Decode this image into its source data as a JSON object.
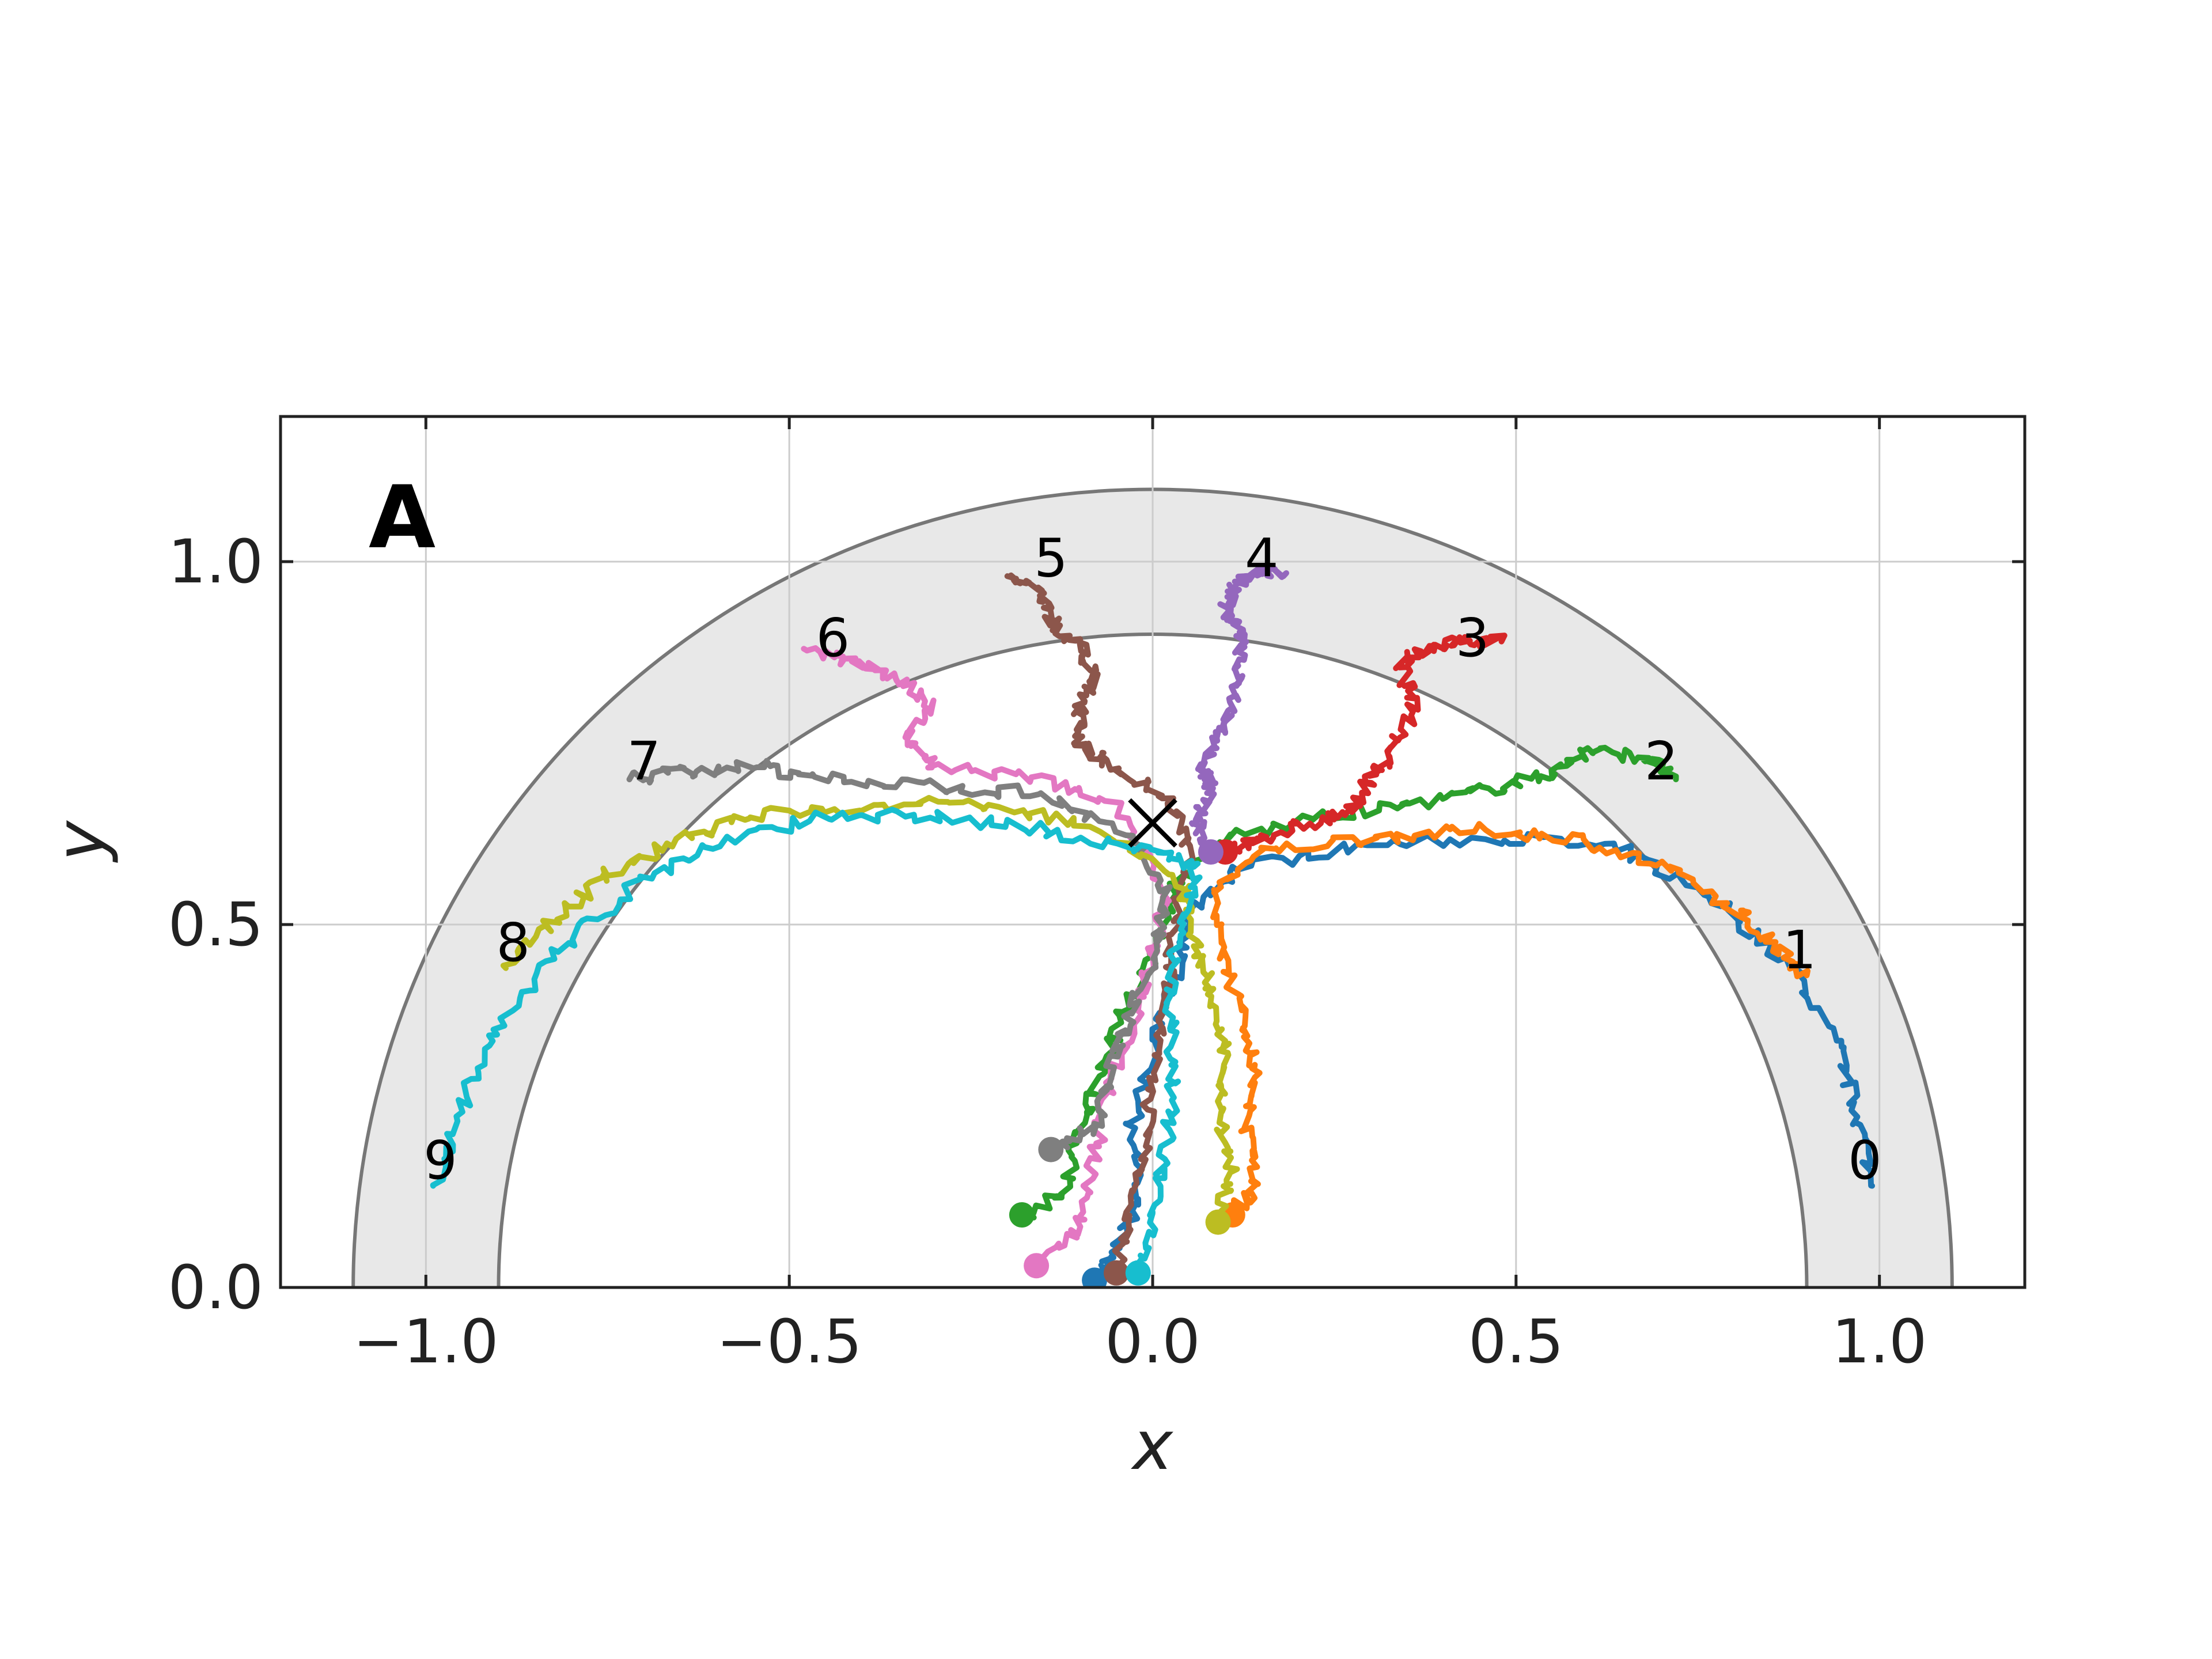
{
  "chart_data": {
    "type": "line",
    "panel_label": "A",
    "xlabel": "x",
    "ylabel": "y",
    "xlim": [
      -1.2,
      1.2
    ],
    "ylim": [
      0.0,
      1.2
    ],
    "xticks": [
      -1.0,
      -0.5,
      0.0,
      0.5,
      1.0
    ],
    "yticks": [
      0.0,
      0.5,
      1.0
    ],
    "xtick_labels": [
      "−1.0",
      "−0.5",
      "0.0",
      "0.5",
      "1.0"
    ],
    "ytick_labels": [
      "0.0",
      "0.5",
      "1.0"
    ],
    "grid": true,
    "annulus": {
      "inner_radius": 0.9,
      "outer_radius": 1.1,
      "fill": "#e8e8e8",
      "edge": "#777777"
    },
    "target_marker": {
      "x": 0.0,
      "y": 0.64,
      "symbol": "x",
      "color": "#000000"
    },
    "series": [
      {
        "label": "0",
        "color": "#1f77b4",
        "points": [
          [
            -0.08,
            0.01
          ],
          [
            -0.06,
            0.04
          ],
          [
            -0.02,
            0.12
          ],
          [
            -0.03,
            0.22
          ],
          [
            0.0,
            0.32
          ],
          [
            0.03,
            0.42
          ],
          [
            0.05,
            0.52
          ],
          [
            0.12,
            0.58
          ],
          [
            0.3,
            0.61
          ],
          [
            0.5,
            0.62
          ],
          [
            0.65,
            0.6
          ],
          [
            0.78,
            0.53
          ],
          [
            0.88,
            0.44
          ],
          [
            0.94,
            0.34
          ],
          [
            0.97,
            0.24
          ],
          [
            0.99,
            0.14
          ]
        ],
        "label_pos": [
          0.98,
          0.17
        ]
      },
      {
        "label": "1",
        "color": "#ff7f0e",
        "points": [
          [
            0.11,
            0.1
          ],
          [
            0.14,
            0.14
          ],
          [
            0.13,
            0.22
          ],
          [
            0.14,
            0.3
          ],
          [
            0.13,
            0.36
          ],
          [
            0.1,
            0.44
          ],
          [
            0.08,
            0.54
          ],
          [
            0.15,
            0.6
          ],
          [
            0.3,
            0.62
          ],
          [
            0.45,
            0.63
          ],
          [
            0.58,
            0.62
          ],
          [
            0.7,
            0.58
          ],
          [
            0.8,
            0.52
          ],
          [
            0.86,
            0.47
          ],
          [
            0.9,
            0.43
          ]
        ],
        "label_pos": [
          0.89,
          0.46
        ]
      },
      {
        "label": "2",
        "color": "#2ca02c",
        "points": [
          [
            -0.18,
            0.1
          ],
          [
            -0.12,
            0.13
          ],
          [
            -0.1,
            0.22
          ],
          [
            -0.07,
            0.3
          ],
          [
            -0.04,
            0.38
          ],
          [
            0.0,
            0.46
          ],
          [
            0.03,
            0.55
          ],
          [
            0.1,
            0.62
          ],
          [
            0.25,
            0.65
          ],
          [
            0.38,
            0.67
          ],
          [
            0.48,
            0.69
          ],
          [
            0.55,
            0.71
          ],
          [
            0.6,
            0.74
          ],
          [
            0.68,
            0.73
          ],
          [
            0.72,
            0.7
          ]
        ],
        "label_pos": [
          0.7,
          0.72
        ]
      },
      {
        "label": "3",
        "color": "#d62728",
        "points": [
          [
            0.1,
            0.6
          ],
          [
            0.15,
            0.62
          ],
          [
            0.22,
            0.64
          ],
          [
            0.28,
            0.66
          ],
          [
            0.3,
            0.7
          ],
          [
            0.33,
            0.74
          ],
          [
            0.36,
            0.8
          ],
          [
            0.34,
            0.86
          ],
          [
            0.38,
            0.88
          ],
          [
            0.42,
            0.89
          ],
          [
            0.48,
            0.89
          ]
        ],
        "label_pos": [
          0.44,
          0.89
        ]
      },
      {
        "label": "4",
        "color": "#9467bd",
        "points": [
          [
            0.08,
            0.6
          ],
          [
            0.06,
            0.64
          ],
          [
            0.08,
            0.68
          ],
          [
            0.07,
            0.72
          ],
          [
            0.09,
            0.76
          ],
          [
            0.11,
            0.8
          ],
          [
            0.12,
            0.85
          ],
          [
            0.12,
            0.9
          ],
          [
            0.1,
            0.94
          ],
          [
            0.12,
            0.97
          ],
          [
            0.15,
            0.99
          ],
          [
            0.18,
            0.98
          ]
        ],
        "label_pos": [
          0.15,
          1.0
        ]
      },
      {
        "label": "5",
        "color": "#8c564b",
        "points": [
          [
            -0.05,
            0.02
          ],
          [
            -0.03,
            0.1
          ],
          [
            -0.01,
            0.2
          ],
          [
            0.0,
            0.3
          ],
          [
            0.02,
            0.4
          ],
          [
            0.03,
            0.5
          ],
          [
            0.05,
            0.6
          ],
          [
            0.02,
            0.68
          ],
          [
            -0.06,
            0.72
          ],
          [
            -0.1,
            0.75
          ],
          [
            -0.1,
            0.8
          ],
          [
            -0.08,
            0.84
          ],
          [
            -0.1,
            0.88
          ],
          [
            -0.14,
            0.92
          ],
          [
            -0.15,
            0.96
          ],
          [
            -0.2,
            0.98
          ]
        ],
        "label_pos": [
          -0.14,
          1.0
        ]
      },
      {
        "label": "6",
        "color": "#e377c2",
        "points": [
          [
            -0.16,
            0.03
          ],
          [
            -0.1,
            0.08
          ],
          [
            -0.08,
            0.18
          ],
          [
            -0.06,
            0.28
          ],
          [
            -0.02,
            0.38
          ],
          [
            0.0,
            0.46
          ],
          [
            0.02,
            0.54
          ],
          [
            -0.05,
            0.66
          ],
          [
            -0.15,
            0.7
          ],
          [
            -0.3,
            0.72
          ],
          [
            -0.34,
            0.76
          ],
          [
            -0.3,
            0.8
          ],
          [
            -0.35,
            0.84
          ],
          [
            -0.4,
            0.86
          ],
          [
            -0.48,
            0.88
          ]
        ],
        "label_pos": [
          -0.44,
          0.89
        ]
      },
      {
        "label": "7",
        "color": "#7f7f7f",
        "points": [
          [
            -0.14,
            0.19
          ],
          [
            -0.08,
            0.22
          ],
          [
            -0.06,
            0.3
          ],
          [
            -0.03,
            0.38
          ],
          [
            0.0,
            0.46
          ],
          [
            0.02,
            0.54
          ],
          [
            -0.03,
            0.62
          ],
          [
            -0.15,
            0.68
          ],
          [
            -0.3,
            0.69
          ],
          [
            -0.45,
            0.7
          ],
          [
            -0.55,
            0.72
          ],
          [
            -0.65,
            0.71
          ],
          [
            -0.72,
            0.7
          ]
        ],
        "label_pos": [
          -0.7,
          0.72
        ]
      },
      {
        "label": "8",
        "color": "#bcbd22",
        "points": [
          [
            0.09,
            0.09
          ],
          [
            0.11,
            0.16
          ],
          [
            0.09,
            0.24
          ],
          [
            0.1,
            0.32
          ],
          [
            0.08,
            0.4
          ],
          [
            0.06,
            0.48
          ],
          [
            0.04,
            0.56
          ],
          [
            -0.1,
            0.64
          ],
          [
            -0.25,
            0.67
          ],
          [
            -0.4,
            0.66
          ],
          [
            -0.55,
            0.65
          ],
          [
            -0.65,
            0.62
          ],
          [
            -0.75,
            0.57
          ],
          [
            -0.82,
            0.51
          ],
          [
            -0.89,
            0.44
          ]
        ],
        "label_pos": [
          -0.88,
          0.47
        ]
      },
      {
        "label": "9",
        "color": "#17becf",
        "points": [
          [
            -0.02,
            0.02
          ],
          [
            0.0,
            0.1
          ],
          [
            0.02,
            0.2
          ],
          [
            0.03,
            0.3
          ],
          [
            0.02,
            0.4
          ],
          [
            0.04,
            0.5
          ],
          [
            0.06,
            0.58
          ],
          [
            0.0,
            0.6
          ],
          [
            -0.15,
            0.63
          ],
          [
            -0.3,
            0.65
          ],
          [
            -0.45,
            0.65
          ],
          [
            -0.6,
            0.61
          ],
          [
            -0.72,
            0.55
          ],
          [
            -0.82,
            0.46
          ],
          [
            -0.9,
            0.36
          ],
          [
            -0.95,
            0.25
          ],
          [
            -0.99,
            0.14
          ]
        ],
        "label_pos": [
          -0.98,
          0.17
        ]
      }
    ]
  }
}
